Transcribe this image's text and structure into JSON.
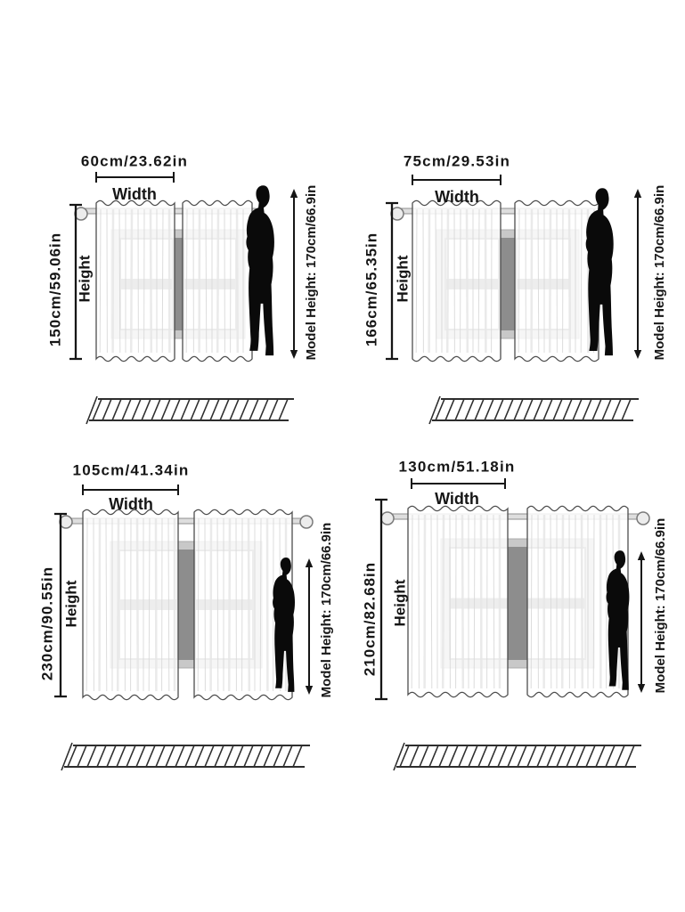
{
  "panels": [
    {
      "width_value": "60cm/23.62in",
      "width_caption": "Width",
      "height_value": "150cm/59.06in",
      "height_caption": "Height",
      "model_height_label": "Model Height: 170cm/66.9in"
    },
    {
      "width_value": "75cm/29.53in",
      "width_caption": "Width",
      "height_value": "166cm/65.35in",
      "height_caption": "Height",
      "model_height_label": "Model Height: 170cm/66.9in"
    },
    {
      "width_value": "105cm/41.34in",
      "width_caption": "Width",
      "height_value": "230cm/90.55in",
      "height_caption": "Height",
      "model_height_label": "Model Height: 170cm/66.9in"
    },
    {
      "width_value": "130cm/51.18in",
      "width_caption": "Width",
      "height_value": "210cm/82.68in",
      "height_caption": "Height",
      "model_height_label": "Model Height: 170cm/66.9in"
    }
  ],
  "chart_data": {
    "type": "table",
    "columns": [
      "width_cm",
      "width_in",
      "height_cm",
      "height_in"
    ],
    "rows": [
      [
        60,
        23.62,
        150,
        59.06
      ],
      [
        75,
        29.53,
        166,
        65.35
      ],
      [
        105,
        41.34,
        230,
        90.55
      ],
      [
        130,
        51.18,
        210,
        82.68
      ]
    ],
    "model_height_cm": 170,
    "model_height_in": 66.9
  },
  "colors": {
    "ink": "#161616",
    "curtain_outline": "#4d4d4d",
    "curtain_streak": "#d9d9d9",
    "window_frame_light": "#c8c8c8",
    "window_frame_dark": "#8d8d8d",
    "rod": "#dedede",
    "silhouette": "#0a0a0a"
  }
}
